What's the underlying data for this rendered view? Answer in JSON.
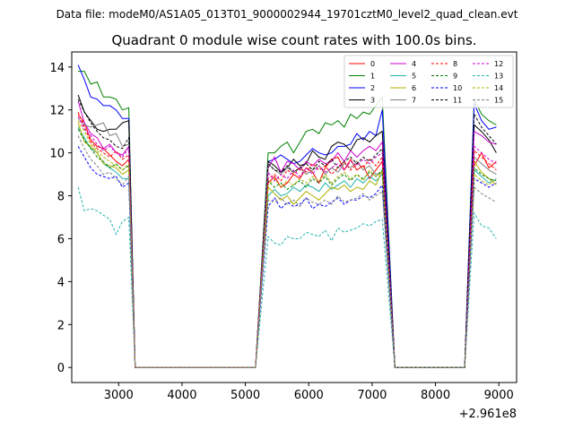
{
  "chart_data": {
    "type": "line",
    "suptitle": "Data file: modeM0/AS1A05_013T01_9000002944_19701cztM0_level2_quad_clean.evt",
    "title": "Quadrant 0 module wise count rates with 100.0s bins.",
    "xlabel": "",
    "ylabel": "",
    "x_offset_label": "+2.961e8",
    "xlim": [
      2260,
      9280
    ],
    "ylim": [
      -0.7,
      14.7
    ],
    "xticks": [
      3000,
      4000,
      5000,
      6000,
      7000,
      8000,
      9000
    ],
    "xtick_labels": [
      "3000",
      "4000",
      "5000",
      "6000",
      "7000",
      "8000",
      "9000"
    ],
    "yticks": [
      0,
      2,
      4,
      6,
      8,
      10,
      12,
      14
    ],
    "ytick_labels": [
      "0",
      "2",
      "4",
      "6",
      "8",
      "10",
      "12",
      "14"
    ],
    "legend": {
      "placement": "top-right",
      "columns": 4
    },
    "segments": [
      {
        "start": 2360,
        "end": 3160
      },
      {
        "start": 5360,
        "end": 7160
      },
      {
        "start": 8610,
        "end": 8960
      }
    ],
    "gaps": [
      [
        3260,
        5160
      ],
      [
        7360,
        8460
      ]
    ],
    "series": [
      {
        "name": "0",
        "color": "#ff0000",
        "dash": "solid",
        "values": [
          [
            11.8,
            11.4,
            10.6,
            10.3,
            10.2,
            9.9,
            9.6,
            9.4,
            9.7
          ],
          [
            8.6,
            8.9,
            8.4,
            8.6,
            9.0,
            8.8,
            9.3,
            9.1,
            8.6,
            9.3,
            9.7,
            9.8,
            9.2,
            9.7,
            9.2,
            9.4,
            8.8,
            9.2,
            9.6
          ],
          [
            9.4,
            10.0,
            9.3,
            9.6
          ]
        ]
      },
      {
        "name": "1",
        "color": "#008000",
        "dash": "solid",
        "values": [
          [
            13.8,
            13.8,
            13.2,
            13.3,
            12.6,
            12.6,
            12.5,
            12.0,
            12.1
          ],
          [
            10.0,
            10.0,
            10.3,
            10.5,
            10.0,
            10.5,
            11.0,
            11.1,
            10.9,
            11.4,
            11.3,
            11.5,
            11.2,
            11.8,
            11.6,
            11.9,
            11.8,
            12.2,
            12.6
          ],
          [
            12.5,
            11.8,
            11.5,
            11.3
          ]
        ]
      },
      {
        "name": "2",
        "color": "#0000ff",
        "dash": "solid",
        "values": [
          [
            14.1,
            13.4,
            12.6,
            12.5,
            12.2,
            12.2,
            12.0,
            11.6,
            11.6
          ],
          [
            9.6,
            9.7,
            9.9,
            9.7,
            9.5,
            9.6,
            9.9,
            10.2,
            10.0,
            9.9,
            10.0,
            10.3,
            10.3,
            10.4,
            10.9,
            10.6,
            11.0,
            10.8,
            12.0
          ],
          [
            12.3,
            11.5,
            11.1,
            11.2
          ]
        ]
      },
      {
        "name": "3",
        "color": "#000000",
        "dash": "solid",
        "values": [
          [
            12.7,
            11.9,
            11.5,
            11.1,
            11.0,
            11.1,
            11.1,
            11.4,
            11.5
          ],
          [
            9.6,
            9.4,
            9.1,
            9.3,
            9.7,
            9.4,
            9.5,
            10.1,
            9.8,
            9.7,
            10.3,
            10.5,
            10.4,
            10.1,
            10.6,
            10.7,
            10.5,
            10.8,
            11.0
          ],
          [
            11.3,
            11.0,
            10.6,
            10.0
          ]
        ]
      },
      {
        "name": "4",
        "color": "#cc00cc",
        "dash": "solid",
        "values": [
          [
            12.4,
            11.4,
            10.9,
            10.7,
            10.2,
            10.4,
            10.0,
            9.9,
            10.3
          ],
          [
            9.3,
            9.8,
            9.1,
            9.6,
            9.5,
            9.2,
            9.6,
            9.4,
            9.7,
            9.5,
            9.6,
            10.0,
            9.6,
            10.1,
            9.8,
            10.1,
            10.3,
            10.1,
            10.5
          ],
          [
            11.0,
            10.8,
            10.5,
            10.4
          ]
        ]
      },
      {
        "name": "5",
        "color": "#20b2aa",
        "dash": "solid",
        "values": [
          [
            11.2,
            10.7,
            10.2,
            10.0,
            9.5,
            9.3,
            9.1,
            8.8,
            8.8
          ],
          [
            8.0,
            8.3,
            8.0,
            8.1,
            8.4,
            8.2,
            8.5,
            8.4,
            8.2,
            8.6,
            8.3,
            8.5,
            8.7,
            8.4,
            8.8,
            8.6,
            8.9,
            8.7,
            9.0
          ],
          [
            9.2,
            8.9,
            8.6,
            8.8
          ]
        ]
      },
      {
        "name": "6",
        "color": "#b0b000",
        "dash": "solid",
        "values": [
          [
            11.4,
            10.5,
            10.3,
            10.0,
            9.5,
            9.4,
            9.3,
            9.0,
            9.2
          ],
          [
            8.4,
            8.1,
            7.8,
            8.0,
            7.6,
            7.9,
            8.2,
            8.0,
            7.8,
            8.1,
            8.4,
            8.3,
            8.5,
            8.2,
            8.4,
            8.3,
            8.7,
            8.5,
            9.2
          ],
          [
            9.6,
            9.1,
            8.8,
            8.5
          ]
        ]
      },
      {
        "name": "7",
        "color": "#808080",
        "dash": "solid",
        "values": [
          [
            11.6,
            11.3,
            11.2,
            11.3,
            11.4,
            10.8,
            10.9,
            10.3,
            10.4
          ],
          [
            9.5,
            9.2,
            9.0,
            9.3,
            9.1,
            9.3,
            9.0,
            9.2,
            9.4,
            9.0,
            9.3,
            9.1,
            9.5,
            9.3,
            9.6,
            9.2,
            9.4,
            9.0,
            9.1
          ],
          [
            9.8,
            9.5,
            9.2,
            9.0
          ]
        ]
      },
      {
        "name": "8",
        "color": "#ff0000",
        "dash": "dashed",
        "values": [
          [
            11.9,
            11.2,
            10.5,
            10.2,
            10.0,
            9.8,
            10.1,
            9.7,
            9.9
          ],
          [
            8.8,
            9.0,
            8.7,
            9.2,
            9.0,
            9.3,
            9.1,
            9.5,
            9.2,
            9.4,
            9.0,
            9.3,
            9.6,
            9.2,
            9.5,
            9.3,
            9.7,
            9.4,
            9.8
          ],
          [
            10.1,
            9.8,
            9.5,
            9.2
          ]
        ]
      },
      {
        "name": "9",
        "color": "#008000",
        "dash": "dashed",
        "values": [
          [
            11.1,
            10.6,
            10.2,
            9.8,
            9.6,
            9.3,
            9.5,
            9.2,
            9.4
          ],
          [
            8.7,
            8.4,
            8.6,
            8.3,
            8.5,
            8.7,
            8.4,
            8.8,
            8.6,
            8.9,
            8.5,
            8.8,
            9.0,
            8.7,
            9.0,
            8.8,
            9.1,
            8.9,
            9.2
          ],
          [
            9.3,
            9.0,
            8.8,
            8.7
          ]
        ]
      },
      {
        "name": "10",
        "color": "#0000ff",
        "dash": "dashed",
        "values": [
          [
            10.3,
            9.8,
            9.3,
            9.0,
            8.9,
            8.8,
            8.9,
            8.4,
            8.6
          ],
          [
            7.5,
            7.9,
            7.4,
            7.7,
            7.5,
            7.6,
            7.9,
            7.4,
            7.6,
            7.5,
            7.7,
            7.9,
            7.6,
            7.8,
            7.8,
            8.0,
            7.9,
            8.1,
            8.5
          ],
          [
            8.8,
            8.6,
            8.4,
            8.6
          ]
        ]
      },
      {
        "name": "11",
        "color": "#000000",
        "dash": "dashed",
        "values": [
          [
            12.5,
            11.9,
            11.4,
            11.0,
            10.7,
            10.6,
            10.3,
            10.2,
            10.7
          ],
          [
            9.5,
            9.2,
            9.1,
            9.4,
            9.1,
            9.3,
            9.5,
            9.2,
            9.6,
            9.4,
            9.7,
            9.3,
            9.6,
            9.8,
            9.5,
            9.8,
            9.6,
            9.9,
            10.2
          ],
          [
            11.8,
            11.2,
            10.8,
            10.4
          ]
        ]
      },
      {
        "name": "12",
        "color": "#cc00cc",
        "dash": "dashed",
        "values": [
          [
            11.7,
            11.1,
            10.8,
            10.4,
            10.1,
            10.3,
            10.0,
            9.8,
            10.2
          ],
          [
            9.1,
            8.7,
            9.0,
            8.8,
            9.2,
            8.9,
            9.3,
            9.0,
            9.4,
            9.1,
            9.3,
            9.5,
            9.2,
            9.6,
            9.4,
            9.7,
            9.5,
            9.8,
            10.0
          ],
          [
            10.3,
            10.0,
            9.7,
            9.5
          ]
        ]
      },
      {
        "name": "13",
        "color": "#20b2aa",
        "dash": "dashed",
        "values": [
          [
            8.4,
            7.3,
            7.4,
            7.3,
            7.1,
            6.9,
            6.2,
            6.8,
            7.0
          ],
          [
            6.1,
            5.8,
            5.7,
            6.1,
            6.0,
            6.0,
            6.3,
            6.2,
            6.1,
            6.4,
            5.9,
            6.5,
            6.3,
            6.4,
            6.5,
            6.7,
            6.6,
            6.8,
            6.9
          ],
          [
            7.2,
            6.6,
            6.5,
            6.0
          ]
        ]
      },
      {
        "name": "14",
        "color": "#b0b000",
        "dash": "dashed",
        "values": [
          [
            11.5,
            11.0,
            10.4,
            10.1,
            9.8,
            9.6,
            9.4,
            9.2,
            9.5
          ],
          [
            8.5,
            8.8,
            8.4,
            8.7,
            8.5,
            8.8,
            8.6,
            8.9,
            8.7,
            9.0,
            8.6,
            8.9,
            9.1,
            8.8,
            9.0,
            8.7,
            9.2,
            8.9,
            9.1
          ],
          [
            9.0,
            8.7,
            8.5,
            8.8
          ]
        ]
      },
      {
        "name": "15",
        "color": "#808080",
        "dash": "dashed",
        "values": [
          [
            10.8,
            10.2,
            9.7,
            9.4,
            9.0,
            9.1,
            8.8,
            8.5,
            8.9
          ],
          [
            7.8,
            7.7,
            7.9,
            7.6,
            7.8,
            7.5,
            7.9,
            7.7,
            7.6,
            7.8,
            7.6,
            8.0,
            7.7,
            7.8,
            7.9,
            8.1,
            7.8,
            8.0,
            8.2
          ],
          [
            8.4,
            8.1,
            7.9,
            7.7
          ]
        ]
      }
    ]
  }
}
